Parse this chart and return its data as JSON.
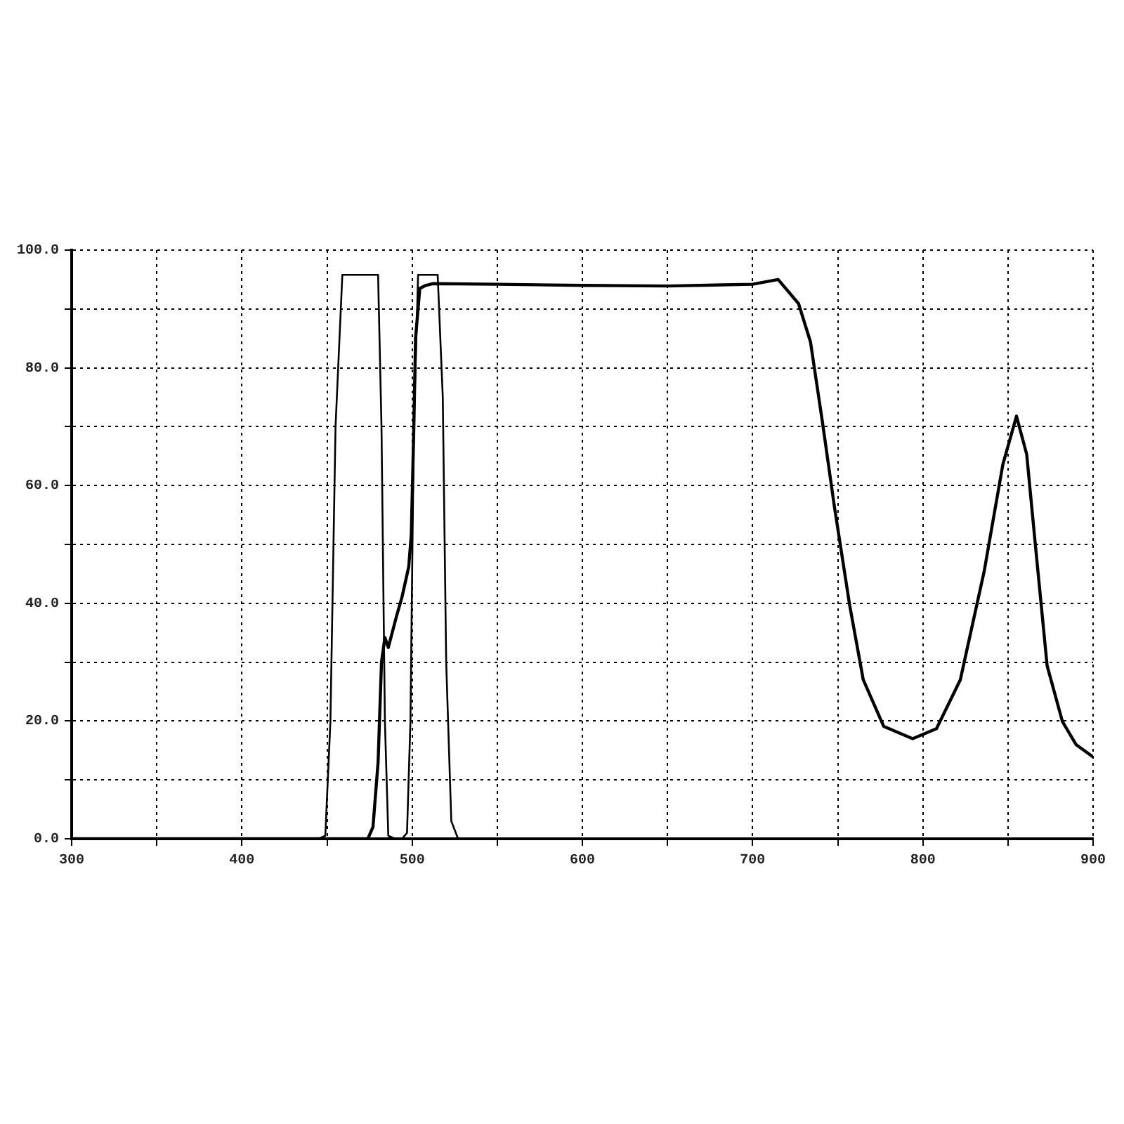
{
  "chart_data": {
    "type": "line",
    "xlim": [
      300,
      900
    ],
    "ylim": [
      0,
      100
    ],
    "xticks": [
      300,
      {
        "value": 350,
        "label": null
      },
      400,
      {
        "value": 450,
        "label": null
      },
      500,
      {
        "value": 550,
        "label": null
      },
      600,
      {
        "value": 650,
        "label": null
      },
      700,
      {
        "value": 750,
        "label": null
      },
      800,
      {
        "value": 850,
        "label": null
      },
      900
    ],
    "yticks": [
      {
        "value": 0,
        "label": "0.0"
      },
      {
        "value": 10,
        "label": null
      },
      {
        "value": 20,
        "label": "20.0"
      },
      {
        "value": 30,
        "label": null
      },
      {
        "value": 40,
        "label": "40.0"
      },
      {
        "value": 50,
        "label": null
      },
      {
        "value": 60,
        "label": "60.0"
      },
      {
        "value": 70,
        "label": null
      },
      {
        "value": 80,
        "label": "80.0"
      },
      {
        "value": 90,
        "label": null
      },
      {
        "value": 100,
        "label": "100.0"
      }
    ],
    "grid": true,
    "legend": false,
    "marker": "none",
    "line_style": "solid",
    "series": [
      {
        "color": "#000000",
        "x": [
          300,
          445,
          449,
          452,
          455,
          459,
          470,
          480,
          482,
          484,
          486,
          490,
          900
        ],
        "values": [
          0,
          0,
          0.5,
          20,
          70,
          95.8,
          95.8,
          95.8,
          70,
          20,
          0.5,
          0,
          0
        ]
      },
      {
        "color": "#000000",
        "x": [
          300,
          474,
          477,
          480,
          482,
          484,
          486,
          488,
          491,
          494,
          498,
          499.5,
          501,
          502,
          504.5,
          508,
          512,
          550,
          600,
          650,
          700,
          715,
          727,
          734,
          741,
          748,
          757,
          765,
          777,
          794,
          808,
          822,
          836,
          847,
          855,
          861,
          866,
          873,
          882,
          890,
          900
        ],
        "values": [
          0,
          0,
          2,
          13,
          30,
          34.2,
          32.5,
          34.7,
          38,
          41,
          46.2,
          51.7,
          70,
          85,
          93.5,
          94,
          94.3,
          94.2,
          94,
          93.9,
          94.2,
          95,
          90.9,
          84.4,
          70.8,
          56.5,
          39.7,
          27,
          19.1,
          17,
          18.7,
          27,
          45.4,
          63.6,
          71.8,
          65.3,
          50.2,
          29.4,
          19.9,
          16,
          13.9
        ]
      },
      {
        "color": "#000000",
        "x": [
          300,
          494,
          497,
          499,
          501,
          503.5,
          510,
          515,
          518,
          520,
          523,
          527,
          900
        ],
        "values": [
          0,
          0,
          1,
          20,
          70,
          95.8,
          95.8,
          95.8,
          75,
          30,
          3,
          0,
          0
        ]
      }
    ]
  }
}
